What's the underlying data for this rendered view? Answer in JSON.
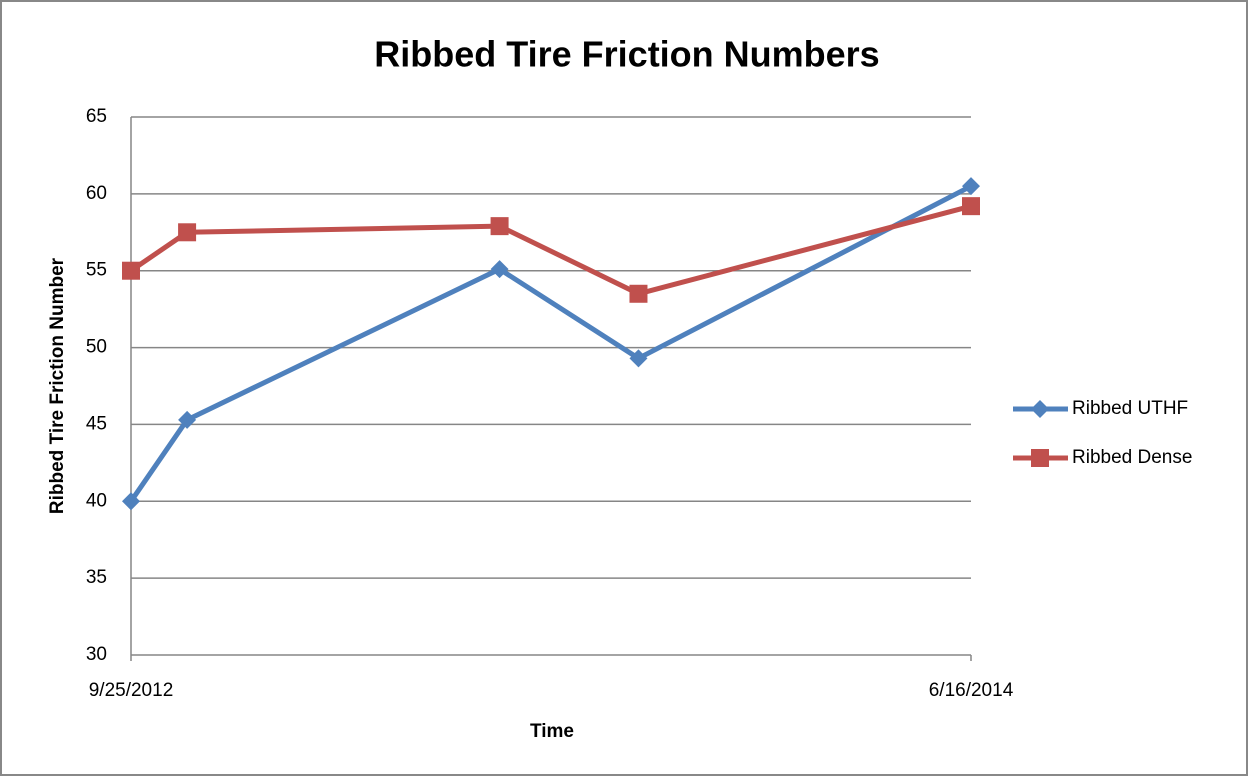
{
  "chart_data": {
    "type": "line",
    "title": "Ribbed Tire Friction Numbers",
    "x_label": "Time",
    "y_label": "Ribbed Tire Friction Number",
    "x": [
      0,
      42,
      276,
      380,
      629
    ],
    "xlim": [
      0,
      629
    ],
    "xticks": [
      {
        "value": 0,
        "label": "9/25/2012"
      },
      {
        "value": 629,
        "label": "6/16/2014"
      }
    ],
    "ylim": [
      30,
      65
    ],
    "yticks": [
      30,
      35,
      40,
      45,
      50,
      55,
      60,
      65
    ],
    "grid": true,
    "legend": "right",
    "series": [
      {
        "name": "Ribbed UTHF",
        "color": "#4f81bd",
        "marker": "diamond",
        "values": [
          40,
          45.3,
          55.1,
          49.3,
          60.5
        ]
      },
      {
        "name": "Ribbed Dense",
        "color": "#c0504d",
        "marker": "square",
        "values": [
          55,
          57.5,
          57.9,
          53.5,
          59.2
        ]
      }
    ]
  }
}
